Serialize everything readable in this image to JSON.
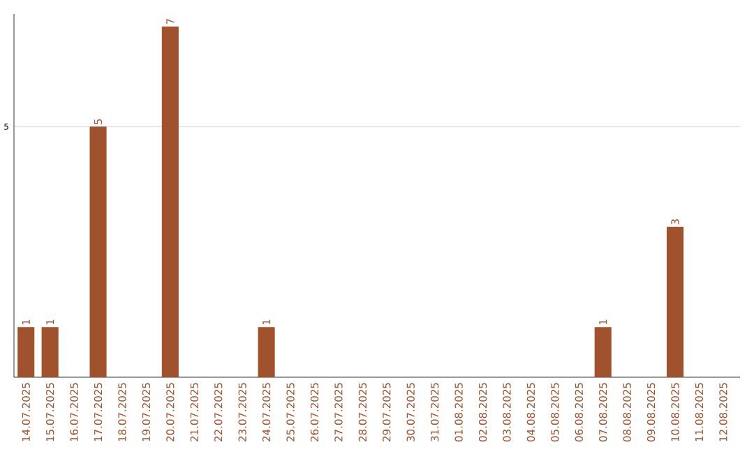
{
  "chart_data": {
    "type": "bar",
    "categories": [
      "14.07.2025",
      "15.07.2025",
      "16.07.2025",
      "17.07.2025",
      "18.07.2025",
      "19.07.2025",
      "20.07.2025",
      "21.07.2025",
      "22.07.2025",
      "23.07.2025",
      "24.07.2025",
      "25.07.2025",
      "26.07.2025",
      "27.07.2025",
      "28.07.2025",
      "29.07.2025",
      "30.07.2025",
      "31.07.2025",
      "01.08.2025",
      "02.08.2025",
      "03.08.2025",
      "04.08.2025",
      "05.08.2025",
      "06.08.2025",
      "07.08.2025",
      "08.08.2025",
      "09.08.2025",
      "10.08.2025",
      "11.08.2025",
      "12.08.2025"
    ],
    "values": [
      1,
      1,
      0,
      5,
      0,
      0,
      7,
      0,
      0,
      0,
      1,
      0,
      0,
      0,
      0,
      0,
      0,
      0,
      0,
      0,
      0,
      0,
      0,
      0,
      1,
      0,
      0,
      3,
      0,
      0
    ],
    "value_labels": [
      "1",
      "1",
      null,
      "5",
      null,
      null,
      "7",
      null,
      null,
      null,
      "1",
      null,
      null,
      null,
      null,
      null,
      null,
      null,
      null,
      null,
      null,
      null,
      null,
      null,
      "1",
      null,
      null,
      "3",
      null,
      null
    ],
    "color": "#a0522d",
    "ylim": [
      0,
      7.25
    ],
    "yticks": [
      5
    ],
    "grid": "y"
  }
}
